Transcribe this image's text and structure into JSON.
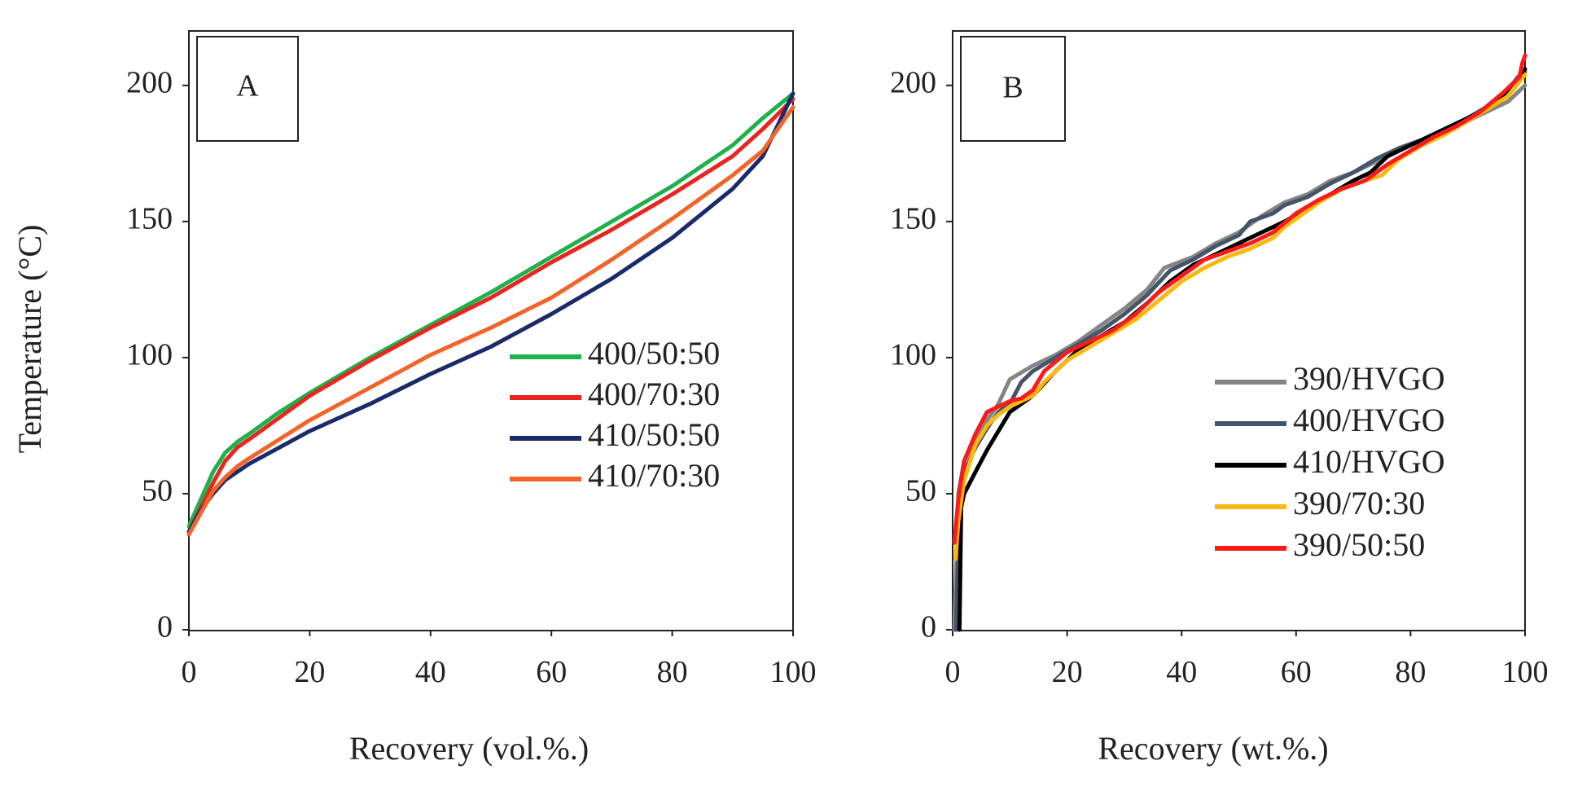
{
  "figure": {
    "ylabel": "Temperature (°C)"
  },
  "chart_data": [
    {
      "panel": "A",
      "type": "line",
      "xlabel": "Recovery (vol.%.)",
      "ylabel": "Temperature (°C)",
      "xlim": [
        0,
        100
      ],
      "ylim": [
        0,
        220
      ],
      "xticks": [
        "0",
        "20",
        "40",
        "60",
        "80",
        "100"
      ],
      "yticks": [
        "0",
        "50",
        "100",
        "150",
        "200"
      ],
      "grid": false,
      "legend_position": "bottom-right",
      "series": [
        {
          "name": "400/50:50",
          "color": "#1fb14a",
          "x": [
            0,
            2,
            4,
            6,
            8,
            10,
            15,
            20,
            30,
            40,
            50,
            60,
            70,
            80,
            90,
            95,
            100
          ],
          "y": [
            38,
            48,
            58,
            65,
            69,
            72,
            80,
            87,
            100,
            112,
            124,
            137,
            150,
            163,
            178,
            188,
            197
          ]
        },
        {
          "name": "400/70:30",
          "color": "#e8251f",
          "x": [
            0,
            2,
            4,
            6,
            8,
            10,
            15,
            20,
            30,
            40,
            50,
            60,
            70,
            80,
            90,
            95,
            100
          ],
          "y": [
            36,
            45,
            54,
            62,
            67,
            70,
            78,
            86,
            99,
            111,
            122,
            135,
            147,
            160,
            174,
            184,
            195
          ]
        },
        {
          "name": "410/50:50",
          "color": "#1b2a6b",
          "x": [
            0,
            2,
            4,
            6,
            8,
            10,
            15,
            20,
            30,
            40,
            50,
            60,
            70,
            80,
            90,
            95,
            100
          ],
          "y": [
            36,
            44,
            50,
            55,
            58,
            61,
            67,
            73,
            83,
            94,
            104,
            116,
            129,
            144,
            162,
            174,
            197
          ]
        },
        {
          "name": "410/70:30",
          "color": "#f2652a",
          "x": [
            0,
            2,
            4,
            6,
            8,
            10,
            15,
            20,
            30,
            40,
            50,
            60,
            70,
            80,
            90,
            95,
            100
          ],
          "y": [
            35,
            43,
            51,
            56,
            60,
            63,
            70,
            77,
            89,
            101,
            111,
            122,
            136,
            151,
            167,
            176,
            192
          ]
        }
      ]
    },
    {
      "panel": "B",
      "type": "line",
      "xlabel": "Recovery (wt.%.)",
      "ylabel": "",
      "xlim": [
        0,
        100
      ],
      "ylim": [
        0,
        220
      ],
      "xticks": [
        "0",
        "20",
        "40",
        "60",
        "80",
        "100"
      ],
      "yticks": [
        "0",
        "50",
        "100",
        "150",
        "200"
      ],
      "grid": false,
      "legend_position": "center-right",
      "series": [
        {
          "name": "390/HVGO",
          "color": "#858585",
          "x": [
            0.3,
            1,
            2,
            4,
            6,
            8,
            10,
            14,
            18,
            22,
            26,
            30,
            34,
            37,
            42,
            46,
            50,
            54,
            58,
            62,
            66,
            70,
            74,
            78,
            82,
            86,
            90,
            94,
            97,
            100
          ],
          "y": [
            0,
            50,
            62,
            70,
            77,
            83,
            92,
            97,
            101,
            106,
            112,
            118,
            125,
            133,
            137,
            142,
            146,
            152,
            157,
            160,
            165,
            168,
            172,
            176,
            180,
            184,
            187,
            191,
            194,
            200
          ]
        },
        {
          "name": "400/HVGO",
          "color": "#44546a",
          "x": [
            0.6,
            1.2,
            2,
            4,
            6,
            8,
            10,
            12,
            14,
            18,
            22,
            26,
            30,
            34,
            38,
            42,
            46,
            50,
            52,
            56,
            58,
            62,
            66,
            70,
            74,
            78,
            82,
            86,
            90,
            94,
            97,
            100
          ],
          "y": [
            0,
            48,
            58,
            67,
            74,
            80,
            83,
            91,
            95,
            100,
            105,
            110,
            116,
            123,
            132,
            136,
            141,
            145,
            150,
            153,
            156,
            159,
            164,
            168,
            173,
            177,
            180,
            184,
            188,
            193,
            197,
            205
          ]
        },
        {
          "name": "410/HVGO",
          "color": "#000000",
          "x": [
            1.2,
            1.5,
            2,
            4,
            6,
            8,
            10,
            12,
            14,
            18,
            22,
            26,
            30,
            34,
            38,
            42,
            46,
            50,
            54,
            58,
            62,
            66,
            70,
            73,
            76,
            80,
            84,
            88,
            92,
            96,
            100
          ],
          "y": [
            0,
            45,
            50,
            58,
            66,
            73,
            80,
            83,
            86,
            95,
            103,
            108,
            113,
            120,
            128,
            134,
            138,
            142,
            146,
            150,
            155,
            160,
            165,
            168,
            174,
            178,
            182,
            186,
            190,
            196,
            206
          ]
        },
        {
          "name": "390/70:30",
          "color": "#fbb80f",
          "x": [
            0.5,
            1,
            2,
            4,
            6,
            8,
            10,
            12,
            14,
            16,
            20,
            24,
            28,
            32,
            36,
            40,
            44,
            48,
            52,
            56,
            58,
            60,
            64,
            68,
            72,
            75,
            78,
            82,
            86,
            90,
            94,
            97,
            100
          ],
          "y": [
            26,
            40,
            55,
            68,
            75,
            79,
            82,
            84,
            86,
            91,
            99,
            104,
            109,
            114,
            121,
            128,
            133,
            137,
            140,
            144,
            148,
            151,
            157,
            162,
            165,
            167,
            173,
            178,
            182,
            187,
            192,
            196,
            204
          ]
        },
        {
          "name": "390/50:50",
          "color": "#ff1a1a",
          "x": [
            0.3,
            1,
            2,
            4,
            6,
            8,
            10,
            12,
            14,
            16,
            20,
            24,
            28,
            32,
            36,
            40,
            44,
            48,
            52,
            56,
            60,
            64,
            68,
            72,
            76,
            80,
            84,
            88,
            92,
            96,
            99,
            99.5,
            100
          ],
          "y": [
            32,
            48,
            62,
            72,
            80,
            82,
            84,
            85,
            88,
            95,
            102,
            106,
            110,
            116,
            124,
            130,
            136,
            139,
            142,
            146,
            153,
            158,
            162,
            165,
            171,
            176,
            181,
            185,
            190,
            197,
            203,
            208,
            211
          ]
        }
      ]
    }
  ]
}
